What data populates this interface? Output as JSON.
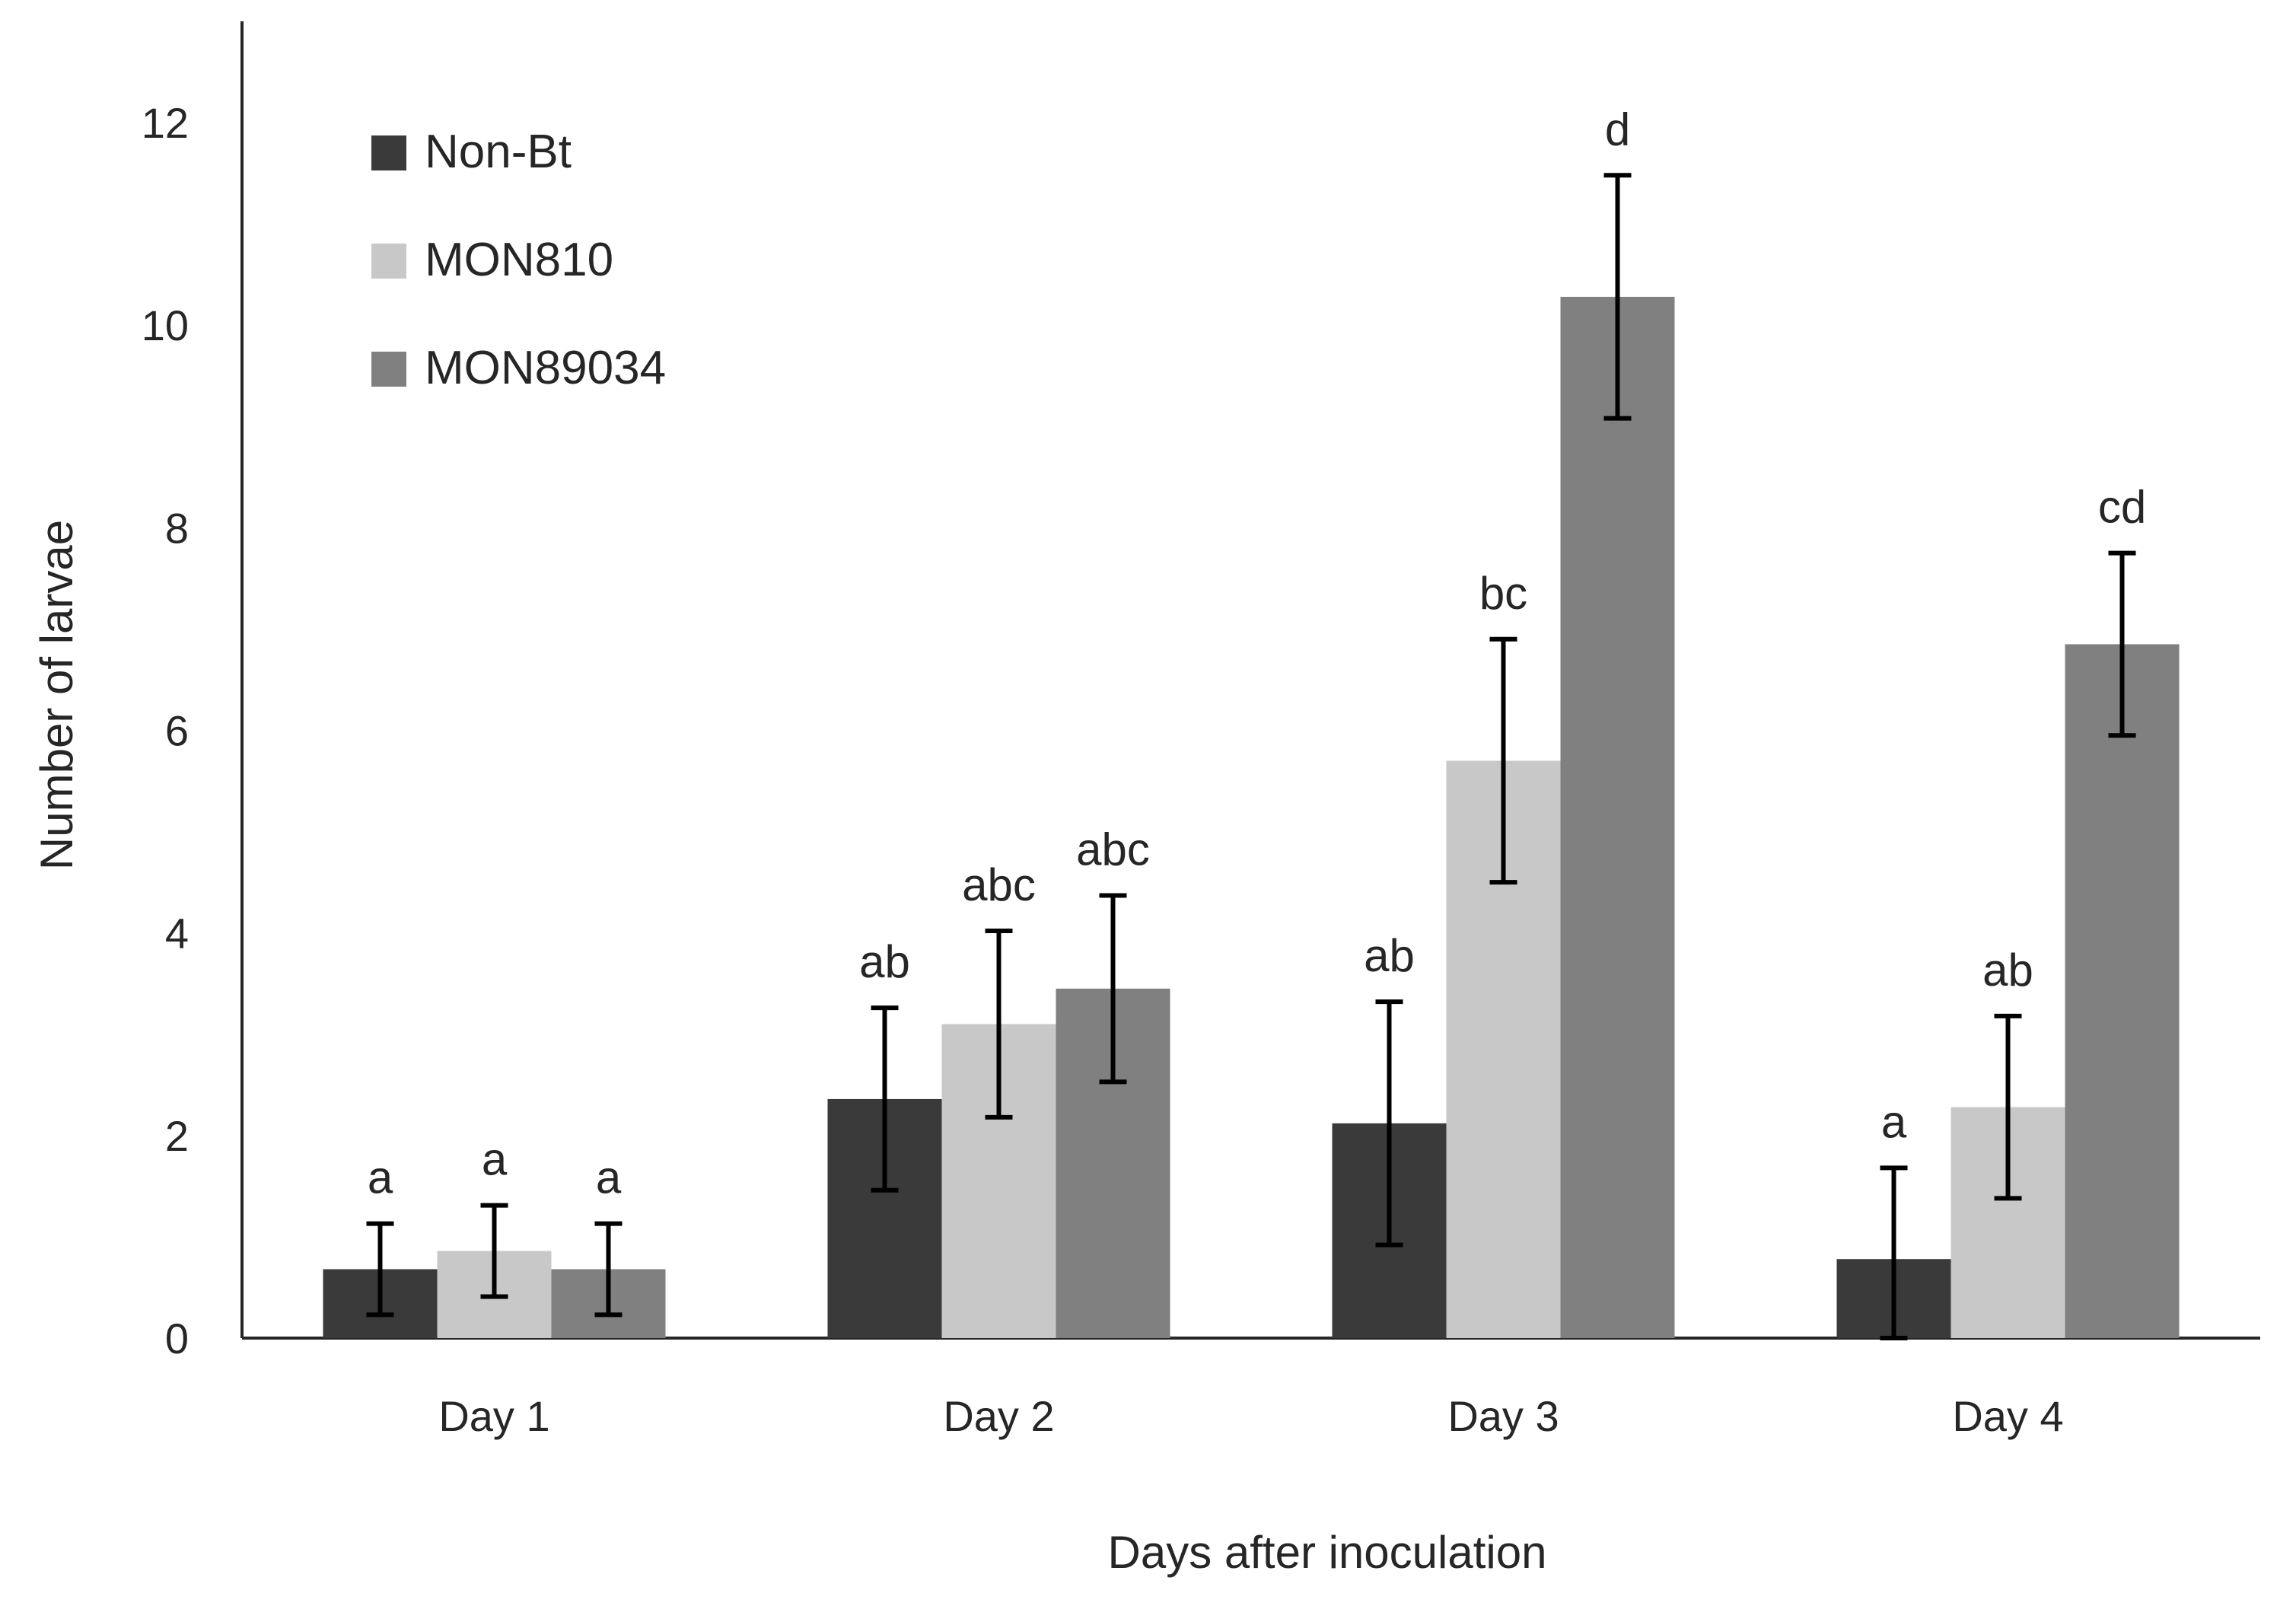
{
  "chart_data": {
    "type": "bar",
    "title": "",
    "xlabel": "Days after inoculation",
    "ylabel": "Number of larvae",
    "ylim": [
      0,
      13
    ],
    "yticks": [
      0,
      2,
      4,
      6,
      8,
      10,
      12
    ],
    "ytick_labels": [
      "0",
      "2",
      "4",
      "6",
      "8",
      "10",
      "12"
    ],
    "grid": false,
    "legend_position": "top-left",
    "categories": [
      "Day 1",
      "Day 2",
      "Day 3",
      "Day 4"
    ],
    "series": [
      {
        "name": "Non-Bt",
        "color": "#3a3a3a",
        "values": [
          0.68,
          2.36,
          2.12,
          0.78
        ],
        "errors": [
          0.45,
          0.9,
          1.2,
          0.9
        ],
        "significance": [
          "a",
          "ab",
          "ab",
          "a"
        ]
      },
      {
        "name": "MON810",
        "color": "#c8c8c8",
        "values": [
          0.86,
          3.1,
          5.7,
          2.28
        ],
        "errors": [
          0.45,
          0.92,
          1.2,
          0.9
        ],
        "significance": [
          "a",
          "abc",
          "bc",
          "ab"
        ]
      },
      {
        "name": "MON89034",
        "color": "#808080",
        "values": [
          0.68,
          3.45,
          10.28,
          6.85
        ],
        "errors": [
          0.45,
          0.92,
          1.2,
          0.9
        ],
        "significance": [
          "a",
          "abc",
          "d",
          "cd"
        ]
      }
    ]
  }
}
